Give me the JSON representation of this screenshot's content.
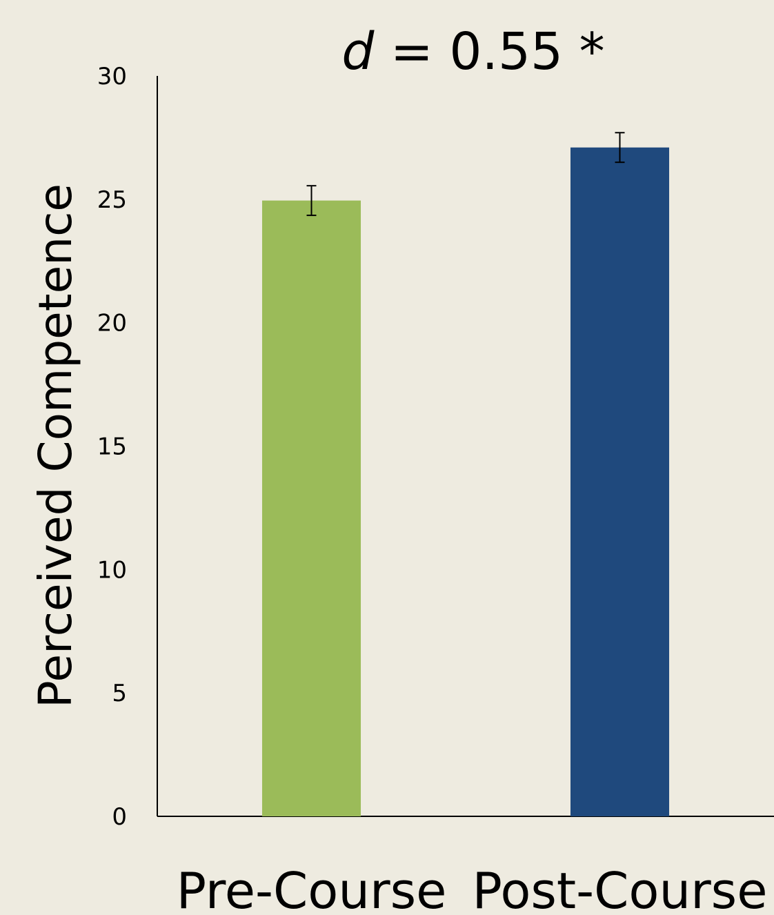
{
  "chart_data": {
    "type": "bar",
    "title_prefix": "d",
    "title_suffix": " = 0.55 *",
    "xlabel": "",
    "ylabel": "Perceived  Competence",
    "categories": [
      "Pre-Course",
      "Post-Course"
    ],
    "values": [
      24.95,
      27.1
    ],
    "errors": [
      0.6,
      0.6
    ],
    "colors": [
      "#9BBB59",
      "#1F497D"
    ],
    "ylim": [
      0,
      30
    ],
    "yticks": [
      0,
      5,
      10,
      15,
      20,
      25,
      30
    ],
    "grid": false,
    "legend": "none"
  },
  "colors": {
    "background": "#EEEBE0",
    "axis": "#000000"
  }
}
